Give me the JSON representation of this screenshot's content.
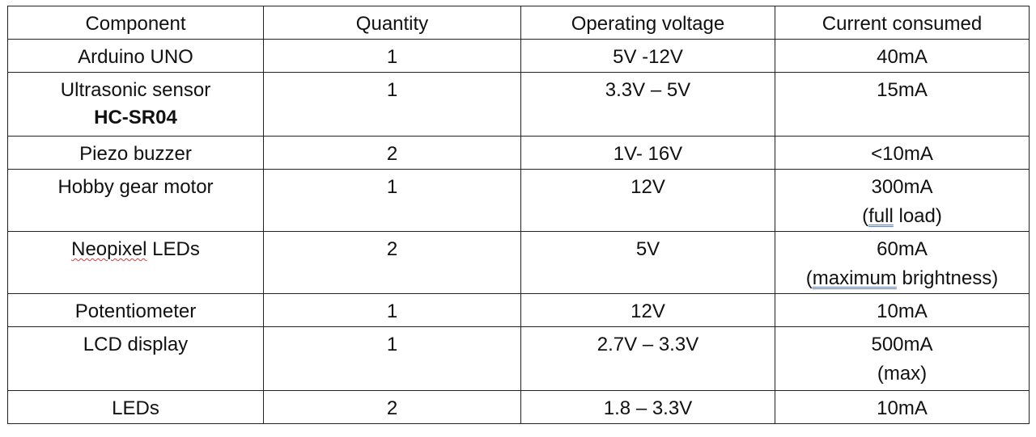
{
  "headers": {
    "component": "Component",
    "quantity": "Quantity",
    "voltage": "Operating voltage",
    "current": "Current consumed"
  },
  "rows": [
    {
      "component": "Arduino UNO",
      "quantity": "1",
      "voltage": "5V -12V",
      "current": "40mA"
    },
    {
      "component": "Ultrasonic sensor",
      "component_model": "HC-SR04",
      "quantity": "1",
      "voltage": "3.3V – 5V",
      "current": "15mA"
    },
    {
      "component": "Piezo buzzer",
      "quantity": "2",
      "voltage": "1V- 16V",
      "current": "<10mA"
    },
    {
      "component": "Hobby gear motor",
      "quantity": "1",
      "voltage": "12V",
      "current": "300mA",
      "current_note_open": "(",
      "current_note_marked": "full",
      "current_note_rest": " load)"
    },
    {
      "component_marked": "Neopixel",
      "component_rest": " LEDs",
      "quantity": "2",
      "voltage": "5V",
      "current": "60mA",
      "current_note_open": "(",
      "current_note_marked": "maximum",
      "current_note_rest": " brightness)"
    },
    {
      "component": "Potentiometer",
      "quantity": "1",
      "voltage": "12V",
      "current": "10mA"
    },
    {
      "component": "LCD display",
      "quantity": "1",
      "voltage": "2.7V – 3.3V",
      "current": "500mA",
      "current_note": "(max)"
    },
    {
      "component": "LEDs",
      "quantity": "2",
      "voltage": "1.8 – 3.3V",
      "current": "10mA"
    }
  ]
}
